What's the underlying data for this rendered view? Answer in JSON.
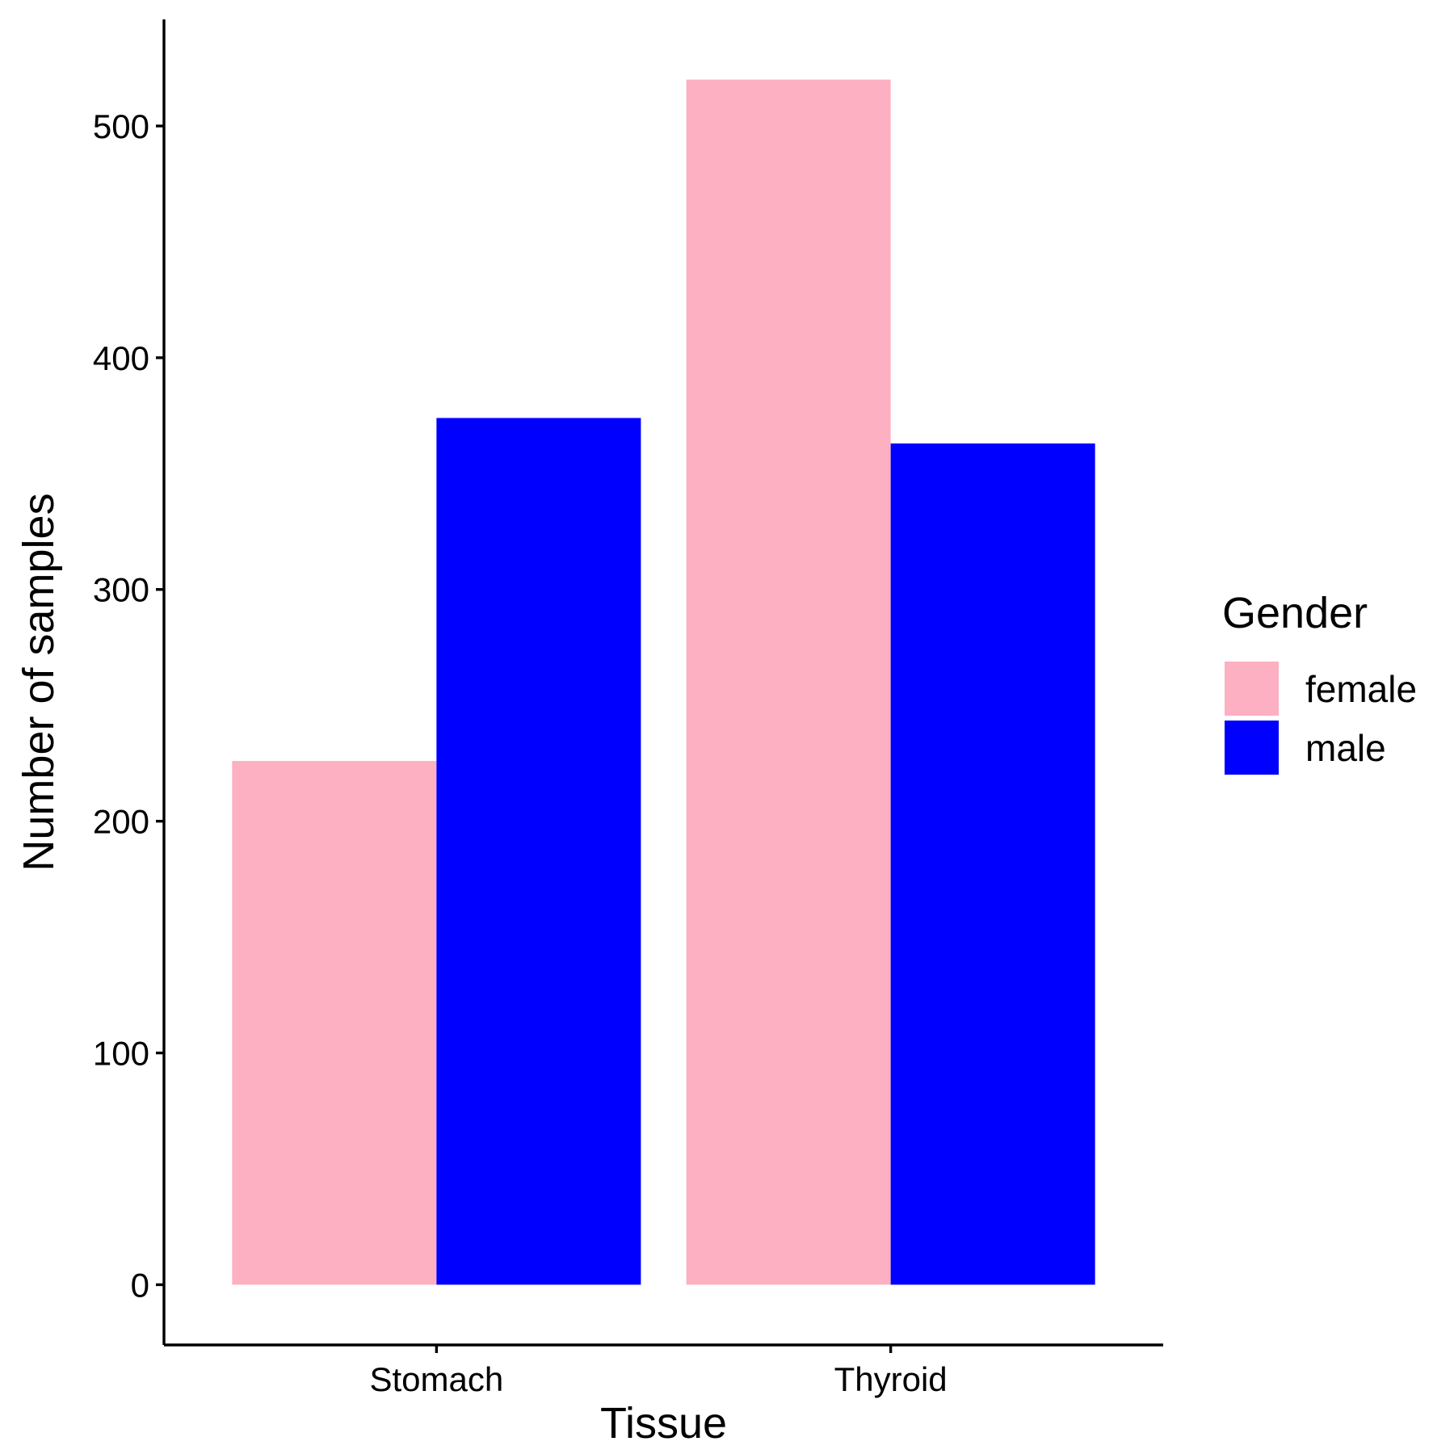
{
  "chart_data": {
    "type": "bar",
    "title": "",
    "xlabel": "Tissue",
    "ylabel": "Number of samples",
    "categories": [
      "Stomach",
      "Thyroid"
    ],
    "series": [
      {
        "name": "female",
        "color": "#FCB0C1",
        "values": [
          226,
          520
        ]
      },
      {
        "name": "male",
        "color": "#0000FF",
        "values": [
          374,
          363
        ]
      }
    ],
    "ylim": [
      -26,
      546
    ],
    "yticks": [
      0,
      100,
      200,
      300,
      400,
      500
    ],
    "grid": false,
    "legend": {
      "title": "Gender",
      "position": "right"
    }
  }
}
